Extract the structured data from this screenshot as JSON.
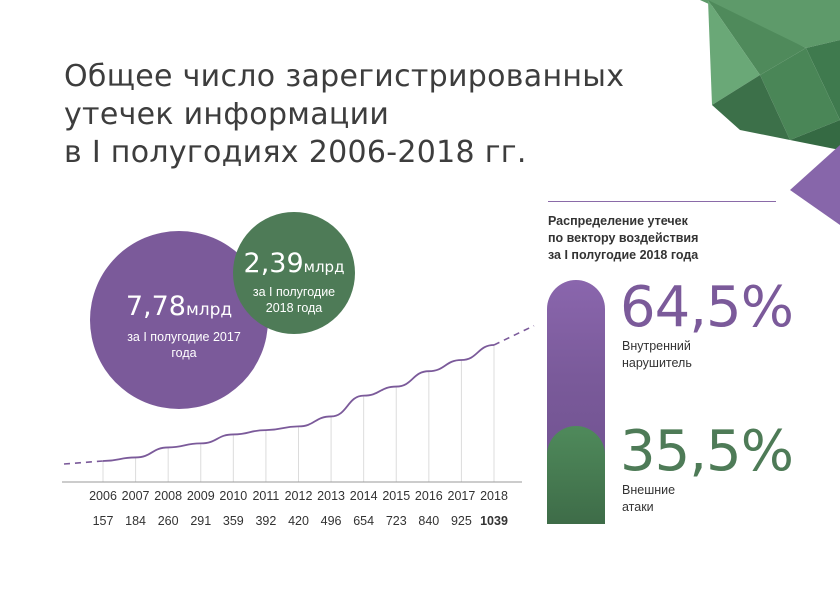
{
  "title_lines": [
    "Общее число зарегистрированных",
    "утечек информации",
    "в I полугодиях 2006-2018 гг."
  ],
  "bubbles": {
    "b2017": {
      "value": "7,78",
      "unit": "млрд",
      "sub_lines": [
        "за I полугодие",
        "2017 года"
      ]
    },
    "b2018": {
      "value": "2,39",
      "unit": "млрд",
      "sub_lines": [
        "за I полугодие",
        "2018 года"
      ]
    }
  },
  "chart_data": {
    "type": "line",
    "categories": [
      "2006",
      "2007",
      "2008",
      "2009",
      "2010",
      "2011",
      "2012",
      "2013",
      "2014",
      "2015",
      "2016",
      "2017",
      "2018"
    ],
    "values": [
      157,
      184,
      260,
      291,
      359,
      392,
      420,
      496,
      654,
      723,
      840,
      925,
      1039
    ],
    "title": "Общее число зарегистрированных утечек информации в I полугодиях 2006-2018 гг.",
    "value_labels": [
      "157",
      "184",
      "260",
      "291",
      "359",
      "392",
      "420",
      "496",
      "654",
      "723",
      "840",
      "925",
      "1039"
    ],
    "grid": "vertical",
    "line_color": "#7b5a9a"
  },
  "side": {
    "title_lines": [
      "Распределение утечек",
      "по вектору воздействия",
      "за I полугодие 2018 года"
    ],
    "internal": {
      "pct": "64,5%",
      "caption_lines": [
        "Внутренний",
        "нарушитель"
      ],
      "value": 64.5
    },
    "external": {
      "pct": "35,5%",
      "caption_lines": [
        "Внешние",
        "атаки"
      ],
      "value": 35.5
    }
  },
  "colors": {
    "purple": "#7b5a9a",
    "green": "#4e7b57",
    "text": "#333333"
  }
}
